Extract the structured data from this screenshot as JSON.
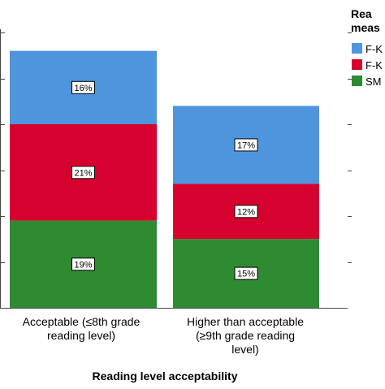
{
  "chart_data": {
    "type": "bar",
    "stacked": true,
    "categories": [
      {
        "lines": [
          "Acceptable (≤8th grade",
          "reading level)"
        ]
      },
      {
        "lines": [
          "Higher than acceptable",
          "(≥9th grade reading",
          "level)"
        ]
      }
    ],
    "series": [
      {
        "name": "SM",
        "color": "#2e8b32",
        "values": [
          19,
          15
        ],
        "labels": [
          "19%",
          "15%"
        ]
      },
      {
        "name": "F-K",
        "color": "#d6002f",
        "values": [
          21,
          12
        ],
        "labels": [
          "21%",
          "12%"
        ]
      },
      {
        "name": "F-K",
        "color": "#4f95de",
        "values": [
          16,
          17
        ],
        "labels": [
          "16%",
          "17%"
        ]
      }
    ],
    "xlabel": "Reading level acceptability",
    "ylim": [
      0,
      62
    ],
    "y_ticks": [
      10,
      20,
      30,
      40,
      50,
      60
    ],
    "legend": {
      "title_lines": [
        "Rea",
        "meas"
      ],
      "placement": "top-right",
      "items": [
        {
          "name": "F-K",
          "color": "#4f95de"
        },
        {
          "name": "F-K",
          "color": "#d6002f"
        },
        {
          "name": "SM",
          "color": "#2e8b32"
        }
      ]
    },
    "grid": false,
    "colors": {
      "axis": "#444444",
      "label_border": "#000000",
      "label_fill": "#ffffff"
    }
  }
}
